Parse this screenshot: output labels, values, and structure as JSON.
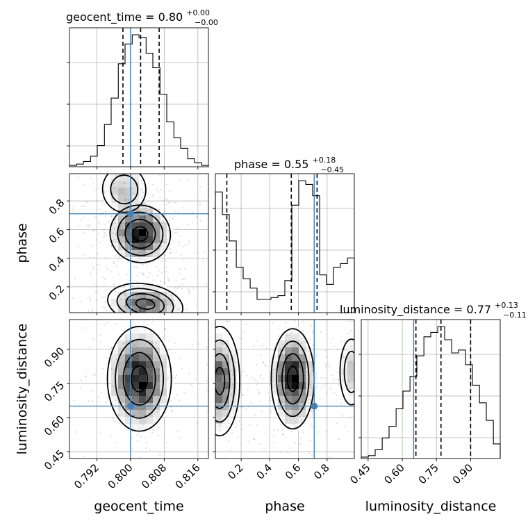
{
  "chart_data": {
    "type": "corner",
    "parameters": [
      "geocent_time",
      "phase",
      "luminosity_distance"
    ],
    "truth_color": "#4682b4",
    "grid": true,
    "titles": [
      {
        "param": "geocent_time",
        "text": "geocent_time = 0.80",
        "upper": "+0.00",
        "lower": "−0.00"
      },
      {
        "param": "phase",
        "text": "phase = 0.55",
        "upper": "+0.18",
        "lower": "−0.45"
      },
      {
        "param": "luminosity_distance",
        "text": "luminosity_distance = 0.77",
        "upper": "+0.13",
        "lower": "−0.11"
      }
    ],
    "axes": {
      "geocent_time": {
        "range": [
          0.7855,
          0.8185
        ],
        "ticks": [
          0.792,
          0.8,
          0.808,
          0.816
        ],
        "tick_labels": [
          "0.792",
          "0.800",
          "0.808",
          "0.816"
        ]
      },
      "phase": {
        "range": [
          0.02,
          0.99
        ],
        "ticks": [
          0.2,
          0.4,
          0.6,
          0.8
        ],
        "tick_labels": [
          "0.2",
          "0.4",
          "0.6",
          "0.8"
        ]
      },
      "luminosity_distance": {
        "range": [
          0.42,
          1.03
        ],
        "ticks": [
          0.45,
          0.6,
          0.75,
          0.9
        ],
        "tick_labels": [
          "0.45",
          "0.60",
          "0.75",
          "0.90"
        ]
      }
    },
    "truths": {
      "geocent_time": 0.8,
      "phase": 0.71,
      "luminosity_distance": 0.65
    },
    "quantiles": {
      "geocent_time": [
        0.7982,
        0.8024,
        0.8068
      ],
      "phase": [
        0.1,
        0.55,
        0.73
      ],
      "luminosity_distance": [
        0.66,
        0.77,
        0.9
      ]
    },
    "histograms": {
      "geocent_time": {
        "edges": [
          0.7855,
          0.7872,
          0.7888,
          0.7905,
          0.7921,
          0.7938,
          0.7954,
          0.7971,
          0.7987,
          0.8004,
          0.802,
          0.8037,
          0.8053,
          0.807,
          0.8086,
          0.8103,
          0.8119,
          0.8136,
          0.8152,
          0.8169,
          0.8185
        ],
        "counts": [
          1,
          2,
          4,
          8,
          16,
          32,
          52,
          78,
          93,
          100,
          98,
          86,
          75,
          55,
          34,
          22,
          14,
          6,
          3,
          1
        ]
      },
      "phase": {
        "edges": [
          0.02,
          0.069,
          0.117,
          0.166,
          0.214,
          0.263,
          0.311,
          0.36,
          0.408,
          0.457,
          0.505,
          0.554,
          0.602,
          0.651,
          0.699,
          0.748,
          0.796,
          0.845,
          0.893,
          0.942,
          0.99
        ],
        "counts": [
          64,
          52,
          38,
          24,
          18,
          13,
          7,
          7,
          8,
          9,
          17,
          57,
          70,
          68,
          62,
          20,
          15,
          24,
          26,
          29
        ]
      },
      "luminosity_distance": {
        "edges": [
          0.42,
          0.451,
          0.481,
          0.512,
          0.542,
          0.573,
          0.603,
          0.634,
          0.664,
          0.695,
          0.725,
          0.756,
          0.786,
          0.817,
          0.847,
          0.878,
          0.908,
          0.939,
          0.969,
          1.0,
          1.03
        ],
        "counts": [
          1,
          2,
          6,
          14,
          22,
          34,
          46,
          56,
          70,
          83,
          86,
          90,
          81,
          72,
          74,
          64,
          50,
          38,
          26,
          10
        ]
      }
    },
    "density_2d": [
      {
        "x": "geocent_time",
        "y": "phase",
        "blobs": [
          {
            "cx": 0.8023,
            "cy": 0.57,
            "sx": 0.0036,
            "sy": 0.1,
            "weight": 1.0,
            "rot": -0.35
          },
          {
            "cx": 0.7985,
            "cy": 0.88,
            "sx": 0.0032,
            "sy": 0.1,
            "weight": 0.35,
            "rot": 0.2
          },
          {
            "cx": 0.8035,
            "cy": 0.08,
            "sx": 0.0045,
            "sy": 0.07,
            "weight": 0.7,
            "rot": -0.2
          }
        ]
      },
      {
        "x": "geocent_time",
        "y": "luminosity_distance",
        "blobs": [
          {
            "cx": 0.8021,
            "cy": 0.77,
            "sx": 0.0038,
            "sy": 0.115,
            "weight": 1.0,
            "rot": 0.0
          }
        ]
      },
      {
        "x": "phase",
        "y": "luminosity_distance",
        "blobs": [
          {
            "cx": 0.56,
            "cy": 0.77,
            "sx": 0.075,
            "sy": 0.11,
            "weight": 1.0,
            "rot": 0.0
          },
          {
            "cx": 0.05,
            "cy": 0.76,
            "sx": 0.07,
            "sy": 0.12,
            "weight": 0.75,
            "rot": 0.0
          },
          {
            "cx": 0.97,
            "cy": 0.8,
            "sx": 0.05,
            "sy": 0.09,
            "weight": 0.35,
            "rot": 0.0
          }
        ]
      }
    ]
  }
}
